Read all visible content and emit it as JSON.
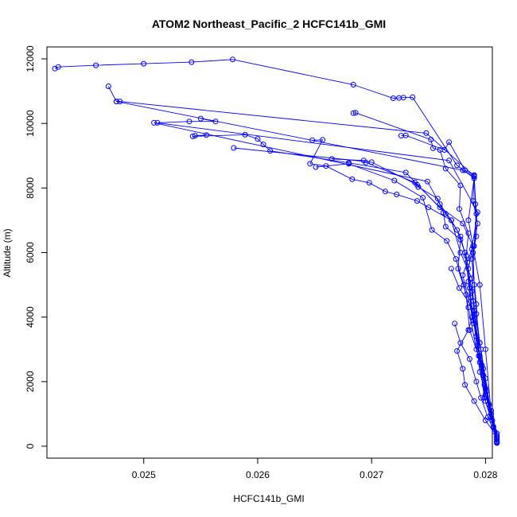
{
  "chart_data": {
    "type": "line",
    "title": "ATOM2 Northeast_Pacific_2 HCFC141b_GMI",
    "xlabel": "HCFC141b_GMI",
    "ylabel": "Altitude (m)",
    "xlim": [
      0.02415,
      0.02806
    ],
    "ylim": [
      -370,
      12370
    ],
    "x_ticks": [
      "0.025",
      "0.026",
      "0.027",
      "0.028"
    ],
    "y_ticks": [
      "0",
      "2000",
      "4000",
      "6000",
      "8000",
      "10000",
      "12000"
    ],
    "grid": false,
    "marker": "open-circle",
    "series": [
      {
        "color": "#0000ff",
        "points": [
          [
            0.02422,
            11700
          ],
          [
            0.02425,
            11750
          ],
          [
            0.02458,
            11800
          ],
          [
            0.025,
            11850
          ],
          [
            0.02542,
            11900
          ],
          [
            0.02578,
            11980
          ],
          [
            0.02684,
            11200
          ],
          [
            0.02719,
            10780
          ],
          [
            0.02724,
            10790
          ],
          [
            0.02728,
            10800
          ],
          [
            0.02736,
            10810
          ],
          [
            0.02775,
            8700
          ],
          [
            0.0279,
            8300
          ],
          [
            0.02785,
            7000
          ],
          [
            0.02795,
            5000
          ],
          [
            0.028,
            3000
          ],
          [
            0.02805,
            1000
          ],
          [
            0.0281,
            200
          ]
        ]
      },
      {
        "color": "#0000ff",
        "points": [
          [
            0.02469,
            11150
          ],
          [
            0.02476,
            10680
          ],
          [
            0.02479,
            10680
          ],
          [
            0.02748,
            9700
          ],
          [
            0.0279,
            8380
          ],
          [
            0.02792,
            7200
          ],
          [
            0.0279,
            6200
          ],
          [
            0.02788,
            4800
          ],
          [
            0.02795,
            3200
          ],
          [
            0.028,
            1800
          ],
          [
            0.0281,
            300
          ]
        ]
      },
      {
        "color": "#0000ff",
        "points": [
          [
            0.02476,
            10680
          ],
          [
            0.0278,
            8550
          ],
          [
            0.0279,
            8350
          ],
          [
            0.02791,
            7500
          ],
          [
            0.02792,
            6500
          ],
          [
            0.02788,
            5800
          ],
          [
            0.02792,
            4400
          ],
          [
            0.02795,
            2600
          ],
          [
            0.028,
            1400
          ],
          [
            0.0281,
            250
          ]
        ]
      },
      {
        "color": "#0000ff",
        "points": [
          [
            0.0255,
            10150
          ],
          [
            0.02563,
            10060
          ],
          [
            0.0254,
            10060
          ],
          [
            0.02512,
            10020
          ],
          [
            0.02768,
            8850
          ],
          [
            0.02793,
            7250
          ],
          [
            0.02788,
            6100
          ],
          [
            0.0278,
            5300
          ],
          [
            0.0279,
            3800
          ],
          [
            0.02795,
            2300
          ],
          [
            0.02805,
            900
          ],
          [
            0.0281,
            150
          ]
        ]
      },
      {
        "color": "#0000ff",
        "points": [
          [
            0.02509,
            10020
          ],
          [
            0.02749,
            8200
          ],
          [
            0.0276,
            7500
          ],
          [
            0.0277,
            7000
          ],
          [
            0.02778,
            6000
          ],
          [
            0.02788,
            5200
          ],
          [
            0.0279,
            4200
          ],
          [
            0.02795,
            2800
          ],
          [
            0.028,
            1600
          ],
          [
            0.0281,
            350
          ]
        ]
      },
      {
        "color": "#0000ff",
        "points": [
          [
            0.02545,
            9620
          ],
          [
            0.02555,
            9640
          ],
          [
            0.02543,
            9600
          ],
          [
            0.02589,
            9650
          ],
          [
            0.026,
            9520
          ],
          [
            0.02605,
            9350
          ],
          [
            0.02611,
            9150
          ],
          [
            0.0268,
            8780
          ],
          [
            0.0273,
            8480
          ],
          [
            0.02765,
            7200
          ],
          [
            0.02775,
            6700
          ],
          [
            0.02782,
            6000
          ],
          [
            0.02785,
            5100
          ],
          [
            0.02788,
            4000
          ],
          [
            0.02796,
            3000
          ],
          [
            0.02801,
            1700
          ],
          [
            0.0281,
            400
          ]
        ]
      },
      {
        "color": "#0000ff",
        "points": [
          [
            0.02579,
            9240
          ],
          [
            0.027,
            8800
          ],
          [
            0.0274,
            8100
          ],
          [
            0.0276,
            7400
          ],
          [
            0.0278,
            6900
          ],
          [
            0.02789,
            6200
          ],
          [
            0.02785,
            5500
          ],
          [
            0.02787,
            4600
          ],
          [
            0.02792,
            3400
          ],
          [
            0.02798,
            2200
          ],
          [
            0.02805,
            1100
          ],
          [
            0.0281,
            100
          ]
        ]
      },
      {
        "color": "#0000ff",
        "points": [
          [
            0.02648,
            9480
          ],
          [
            0.02657,
            9490
          ],
          [
            0.02646,
            8750
          ],
          [
            0.0266,
            8680
          ],
          [
            0.02683,
            8270
          ],
          [
            0.02698,
            8160
          ],
          [
            0.02712,
            7890
          ],
          [
            0.02722,
            7800
          ],
          [
            0.0274,
            7600
          ],
          [
            0.0275,
            7400
          ],
          [
            0.0277,
            7000
          ],
          [
            0.02778,
            6500
          ],
          [
            0.02784,
            5700
          ],
          [
            0.02786,
            4900
          ],
          [
            0.02789,
            3900
          ],
          [
            0.02797,
            2500
          ],
          [
            0.02803,
            1300
          ],
          [
            0.0281,
            300
          ]
        ]
      },
      {
        "color": "#0000ff",
        "points": [
          [
            0.02684,
            10320
          ],
          [
            0.02686,
            10330
          ],
          [
            0.02752,
            9500
          ],
          [
            0.02754,
            9230
          ],
          [
            0.0276,
            9180
          ],
          [
            0.02765,
            8600
          ],
          [
            0.02778,
            8080
          ],
          [
            0.02777,
            7350
          ],
          [
            0.02785,
            6600
          ],
          [
            0.02783,
            5900
          ],
          [
            0.02789,
            4500
          ],
          [
            0.02793,
            3100
          ],
          [
            0.02799,
            1900
          ],
          [
            0.02806,
            800
          ],
          [
            0.0281,
            150
          ]
        ]
      },
      {
        "color": "#0000ff",
        "points": [
          [
            0.02726,
            9620
          ],
          [
            0.0273,
            9630
          ],
          [
            0.02764,
            9180
          ],
          [
            0.02768,
            9420
          ],
          [
            0.02782,
            8550
          ],
          [
            0.0279,
            8400
          ],
          [
            0.02789,
            7600
          ],
          [
            0.02793,
            6900
          ],
          [
            0.02789,
            6000
          ],
          [
            0.0279,
            5000
          ],
          [
            0.02792,
            4100
          ],
          [
            0.02795,
            3200
          ],
          [
            0.028,
            2100
          ],
          [
            0.02805,
            1000
          ],
          [
            0.0281,
            200
          ]
        ]
      },
      {
        "color": "#0000ff",
        "points": [
          [
            0.02665,
            8900
          ],
          [
            0.02693,
            8850
          ],
          [
            0.02695,
            8790
          ],
          [
            0.02738,
            8170
          ],
          [
            0.02741,
            8030
          ],
          [
            0.02758,
            7670
          ],
          [
            0.02763,
            7240
          ],
          [
            0.02765,
            6800
          ],
          [
            0.02778,
            6400
          ],
          [
            0.02776,
            5500
          ],
          [
            0.02783,
            4700
          ],
          [
            0.02786,
            3600
          ],
          [
            0.02794,
            2800
          ],
          [
            0.02799,
            1500
          ],
          [
            0.02807,
            600
          ],
          [
            0.0281,
            120
          ]
        ]
      },
      {
        "color": "#0000ff",
        "points": [
          [
            0.02651,
            8650
          ],
          [
            0.0268,
            8750
          ],
          [
            0.0272,
            8230
          ],
          [
            0.02745,
            7700
          ],
          [
            0.02753,
            6700
          ],
          [
            0.02766,
            6360
          ],
          [
            0.02774,
            5800
          ],
          [
            0.02781,
            5000
          ],
          [
            0.02785,
            4300
          ],
          [
            0.02792,
            3000
          ],
          [
            0.02798,
            2400
          ],
          [
            0.02804,
            1200
          ],
          [
            0.0281,
            250
          ]
        ]
      },
      {
        "color": "#0000ff",
        "points": [
          [
            0.0277,
            5500
          ],
          [
            0.02777,
            4900
          ],
          [
            0.0279,
            4200
          ],
          [
            0.02785,
            3600
          ],
          [
            0.02775,
            2950
          ],
          [
            0.0278,
            2400
          ],
          [
            0.02782,
            1900
          ],
          [
            0.0279,
            1400
          ],
          [
            0.028,
            800
          ],
          [
            0.0281,
            300
          ]
        ]
      },
      {
        "color": "#0000ff",
        "points": [
          [
            0.02773,
            3800
          ],
          [
            0.02778,
            3200
          ],
          [
            0.02786,
            2700
          ],
          [
            0.02792,
            2000
          ],
          [
            0.02796,
            1500
          ],
          [
            0.02802,
            900
          ],
          [
            0.02808,
            450
          ],
          [
            0.0281,
            100
          ]
        ]
      }
    ]
  }
}
